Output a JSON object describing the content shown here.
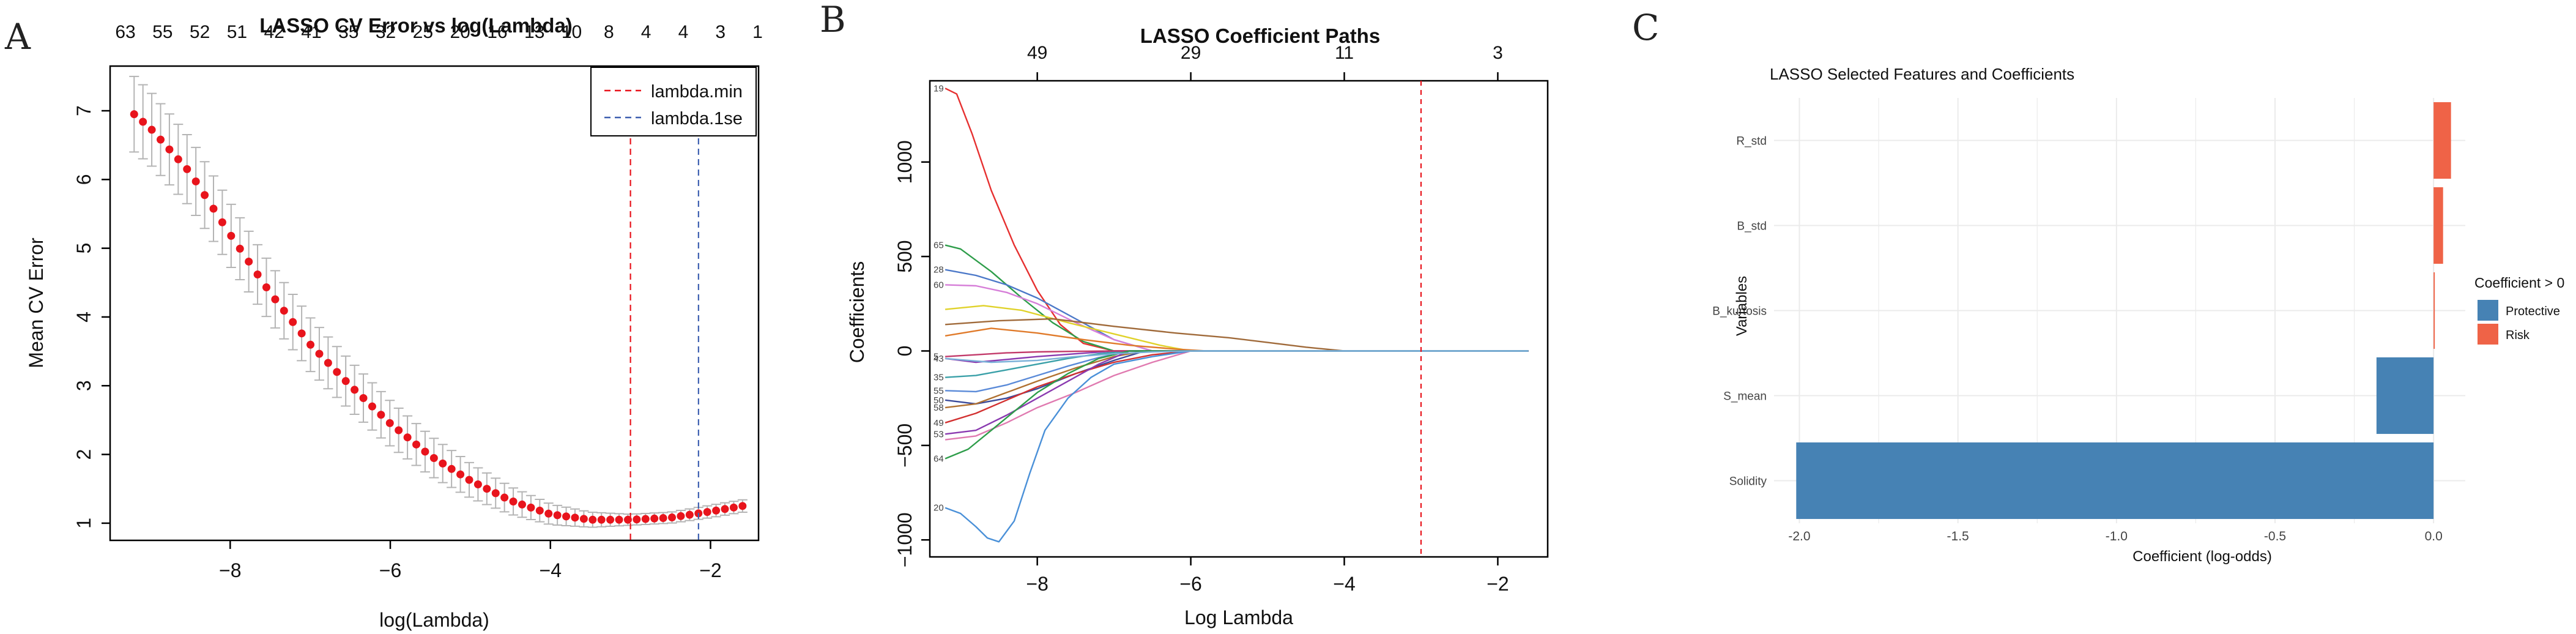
{
  "panels": {
    "a": "A",
    "b": "B",
    "c": "C"
  },
  "chart_data": [
    {
      "type": "scatter",
      "panel": "A",
      "title": "LASSO CV Error vs log(Lambda)",
      "xlabel": "log(Lambda)",
      "ylabel": "Mean CV Error",
      "xlim": [
        -9.5,
        -1.4
      ],
      "ylim": [
        0.75,
        7.65
      ],
      "x_ticks": [
        -8,
        -6,
        -4,
        -2
      ],
      "y_ticks": [
        1,
        2,
        3,
        4,
        5,
        6,
        7
      ],
      "top_axis_labels": [
        "63",
        "55",
        "52",
        "51",
        "42",
        "41",
        "35",
        "32",
        "25",
        "20",
        "16",
        "13",
        "10",
        "8",
        "4",
        "4",
        "3",
        "1"
      ],
      "point_color": "#e8141c",
      "errorbar_color": "#b4b4b4",
      "cv_curve": {
        "x_range": [
          -9.2,
          -1.6
        ],
        "n_points": 70,
        "anchor_x": [
          -9.2,
          -9.0,
          -8.5,
          -8.0,
          -7.5,
          -7.0,
          -6.5,
          -6.0,
          -5.5,
          -5.0,
          -4.5,
          -4.0,
          -3.5,
          -3.0,
          -2.5,
          -2.0,
          -1.6
        ],
        "anchor_y": [
          6.95,
          6.75,
          6.1,
          5.2,
          4.35,
          3.6,
          3.0,
          2.45,
          1.98,
          1.62,
          1.33,
          1.13,
          1.05,
          1.05,
          1.08,
          1.17,
          1.25
        ],
        "anchor_se": [
          0.55,
          0.53,
          0.5,
          0.46,
          0.42,
          0.39,
          0.36,
          0.33,
          0.29,
          0.25,
          0.2,
          0.15,
          0.11,
          0.08,
          0.08,
          0.09,
          0.09
        ]
      },
      "vlines": [
        {
          "name": "lambda.min",
          "x": -3.0,
          "color": "#e8141c"
        },
        {
          "name": "lambda.1se",
          "x": -2.15,
          "color": "#3d5fb0"
        }
      ],
      "legend": [
        "lambda.min",
        "lambda.1se"
      ],
      "legend_position": "top-right"
    },
    {
      "type": "line",
      "panel": "B",
      "title": "LASSO Coefficient Paths",
      "xlabel": "Log Lambda",
      "ylabel": "Coefficients",
      "xlim": [
        -9.4,
        -1.35
      ],
      "ylim": [
        -1090,
        1430
      ],
      "x_ticks": [
        -8,
        -6,
        -4,
        -2
      ],
      "y_ticks": [
        -1000,
        -500,
        0,
        500,
        1000
      ],
      "top_axis": [
        {
          "x": -8.0,
          "label": "49"
        },
        {
          "x": -6.0,
          "label": "29"
        },
        {
          "x": -4.0,
          "label": "11"
        },
        {
          "x": -2.0,
          "label": "3"
        }
      ],
      "vline": {
        "x": -3.0,
        "color": "#e8141c"
      },
      "path_labels": [
        "19",
        "65",
        "28",
        "60",
        "35",
        "43",
        "5",
        "55",
        "50",
        "58",
        "49",
        "53",
        "64",
        "20"
      ],
      "paths": [
        {
          "label": "19",
          "color": "#e63030",
          "x": [
            -9.2,
            -9.05,
            -8.85,
            -8.6,
            -8.3,
            -8.0,
            -7.7,
            -7.4,
            -7.0,
            -1.6
          ],
          "y": [
            1390,
            1360,
            1150,
            850,
            560,
            320,
            140,
            40,
            0,
            0
          ]
        },
        {
          "label": "65",
          "color": "#2e9d4a",
          "x": [
            -9.2,
            -9.0,
            -8.6,
            -8.2,
            -7.8,
            -7.4,
            -7.0,
            -1.6
          ],
          "y": [
            560,
            540,
            420,
            280,
            150,
            50,
            0,
            0
          ]
        },
        {
          "label": "28",
          "color": "#4b78c8",
          "x": [
            -9.2,
            -8.8,
            -8.4,
            -8.0,
            -7.5,
            -7.0,
            -6.5,
            -1.6
          ],
          "y": [
            430,
            400,
            350,
            280,
            170,
            60,
            0,
            0
          ]
        },
        {
          "label": "60",
          "color": "#d67ed8",
          "x": [
            -9.2,
            -8.8,
            -8.4,
            -8.0,
            -7.5,
            -7.0,
            -6.5,
            -1.6
          ],
          "y": [
            350,
            345,
            310,
            250,
            150,
            60,
            0,
            0
          ]
        },
        {
          "label": "",
          "color": "#e0d22a",
          "x": [
            -9.2,
            -8.7,
            -8.2,
            -7.6,
            -7.0,
            -6.4,
            -6.0,
            -1.6
          ],
          "y": [
            220,
            240,
            215,
            150,
            90,
            30,
            0,
            0
          ]
        },
        {
          "label": "",
          "color": "#a06a3a",
          "x": [
            -9.2,
            -8.5,
            -7.8,
            -7.0,
            -6.2,
            -5.5,
            -5.0,
            -4.5,
            -4.0,
            -1.6
          ],
          "y": [
            140,
            160,
            170,
            130,
            95,
            70,
            45,
            20,
            0,
            0
          ]
        },
        {
          "label": "",
          "color": "#e07a2a",
          "x": [
            -9.2,
            -8.6,
            -8.0,
            -7.4,
            -6.8,
            -6.2,
            -5.8,
            -1.6
          ],
          "y": [
            80,
            120,
            95,
            60,
            30,
            10,
            0,
            0
          ]
        },
        {
          "label": "35",
          "color": "#3aa0a8",
          "x": [
            -9.2,
            -8.8,
            -8.4,
            -8.0,
            -7.6,
            -7.2,
            -6.8,
            -1.6
          ],
          "y": [
            -140,
            -130,
            -100,
            -70,
            -40,
            -15,
            0,
            0
          ]
        },
        {
          "label": "43",
          "color": "#8a3ab0",
          "x": [
            -9.2,
            -8.8,
            -8.4,
            -8.0,
            -7.5,
            -7.0,
            -1.6
          ],
          "y": [
            -40,
            -60,
            -45,
            -30,
            -15,
            0,
            0
          ]
        },
        {
          "label": "5",
          "color": "#c23a6a",
          "x": [
            -9.2,
            -8.8,
            -8.4,
            -8.0,
            -7.5,
            -7.0,
            -1.6
          ],
          "y": [
            -30,
            -20,
            -10,
            -5,
            -2,
            0,
            0
          ]
        },
        {
          "label": "55",
          "color": "#5a8ad8",
          "x": [
            -9.2,
            -8.8,
            -8.4,
            -8.0,
            -7.6,
            -7.2,
            -6.8,
            -1.6
          ],
          "y": [
            -210,
            -215,
            -180,
            -130,
            -80,
            -35,
            0,
            0
          ]
        },
        {
          "label": "50",
          "color": "#3a4a9a",
          "x": [
            -9.2,
            -8.8,
            -8.4,
            -8.0,
            -7.5,
            -7.0,
            -6.6,
            -1.6
          ],
          "y": [
            -260,
            -280,
            -250,
            -200,
            -120,
            -50,
            0,
            0
          ]
        },
        {
          "label": "58",
          "color": "#b07030",
          "x": [
            -9.2,
            -8.8,
            -8.4,
            -8.0,
            -7.5,
            -7.0,
            -6.6,
            -1.6
          ],
          "y": [
            -300,
            -280,
            -220,
            -160,
            -90,
            -30,
            0,
            0
          ]
        },
        {
          "label": "49",
          "color": "#d23030",
          "x": [
            -9.2,
            -8.8,
            -8.4,
            -8.0,
            -7.5,
            -7.0,
            -6.5,
            -6.0,
            -1.6
          ],
          "y": [
            -380,
            -330,
            -260,
            -190,
            -120,
            -60,
            -20,
            0,
            0
          ]
        },
        {
          "label": "53",
          "color": "#8a3ab0",
          "x": [
            -9.2,
            -8.8,
            -8.4,
            -8.0,
            -7.6,
            -7.2,
            -6.8,
            -1.6
          ],
          "y": [
            -440,
            -420,
            -340,
            -250,
            -160,
            -70,
            0,
            0
          ]
        },
        {
          "label": "",
          "color": "#e07ab0",
          "x": [
            -9.2,
            -8.8,
            -8.4,
            -8.0,
            -7.5,
            -7.0,
            -6.5,
            -6.0,
            -1.6
          ],
          "y": [
            -470,
            -450,
            -380,
            -300,
            -220,
            -130,
            -60,
            0,
            0
          ]
        },
        {
          "label": "64",
          "color": "#2e9d4a",
          "x": [
            -9.2,
            -8.9,
            -8.6,
            -8.3,
            -8.0,
            -7.6,
            -7.2,
            -6.8,
            -1.6
          ],
          "y": [
            -570,
            -520,
            -420,
            -320,
            -220,
            -120,
            -40,
            0,
            0
          ]
        },
        {
          "label": "20",
          "color": "#4a90d8",
          "x": [
            -9.2,
            -9.0,
            -8.8,
            -8.65,
            -8.5,
            -8.3,
            -8.1,
            -7.9,
            -7.6,
            -7.3,
            -7.0,
            -6.5,
            -6.0,
            -1.6
          ],
          "y": [
            -830,
            -860,
            -930,
            -990,
            -1010,
            -900,
            -650,
            -420,
            -250,
            -140,
            -70,
            -30,
            0,
            0
          ]
        },
        {
          "label": "",
          "color": "#7ab0d8",
          "x": [
            -9.2,
            -8.6,
            -8.0,
            -7.5,
            -7.0,
            -6.5,
            -6.0,
            -5.6,
            -1.6
          ],
          "y": [
            -40,
            -60,
            -50,
            -30,
            -15,
            -5,
            0,
            0,
            0
          ]
        }
      ]
    },
    {
      "type": "bar",
      "panel": "C",
      "orientation": "horizontal",
      "title": "LASSO Selected Features and Coefficients",
      "xlabel": "Coefficient (log-odds)",
      "ylabel": "Variables",
      "xlim": [
        -2.08,
        0.1
      ],
      "x_ticks": [
        -2.0,
        -1.5,
        -1.0,
        -0.5,
        0.0
      ],
      "x_tick_labels": [
        "-2.0",
        "-1.5",
        "-1.0",
        "-0.5",
        "0.0"
      ],
      "categories": [
        "R_std",
        "B_std",
        "B_kurtosis",
        "S_mean",
        "Solidity"
      ],
      "values": [
        0.055,
        0.03,
        0.003,
        -0.18,
        -2.01
      ],
      "colors": {
        "Protective": "#4682b4",
        "Risk": "#ef6347"
      },
      "legend_title": "Coefficient > 0",
      "legend": [
        "Protective",
        "Risk"
      ],
      "legend_position": "right",
      "grid": true
    }
  ]
}
